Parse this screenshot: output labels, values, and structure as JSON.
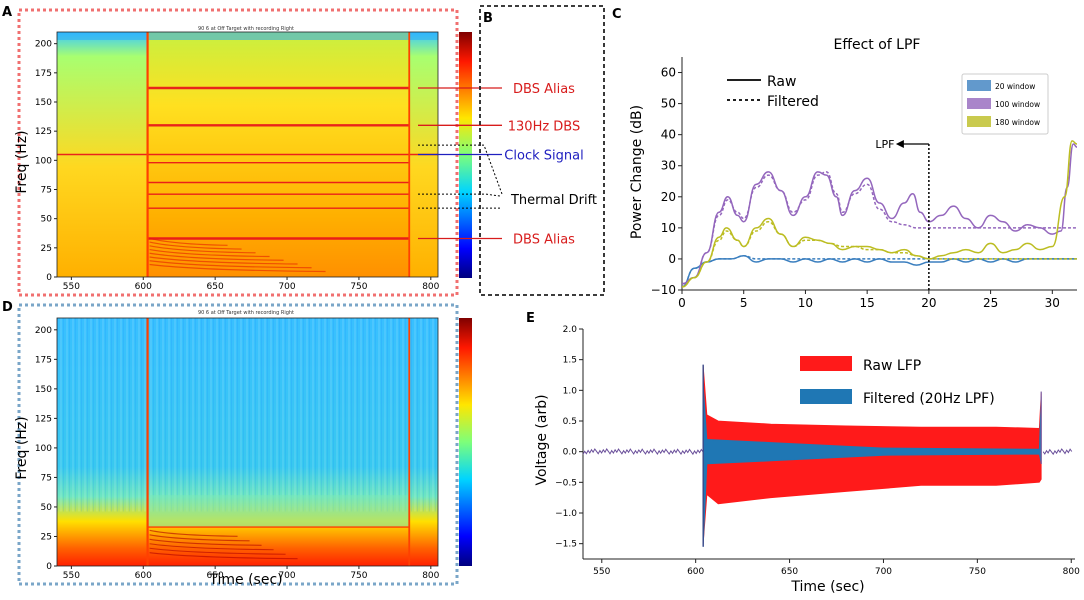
{
  "panels": {
    "A": "A",
    "B": "B",
    "C": "C",
    "D": "D",
    "E": "E"
  },
  "colors": {
    "red_dotted_border": "#f07070",
    "blue_dotted_border": "#7aa6c8",
    "annot_red": "#d81c1c",
    "annot_blue": "#2020c0",
    "raw_lfp": "#ff1a1a",
    "filtered_lfp": "#1f77b4",
    "win20": "#3b7fbf",
    "win100": "#9467bd",
    "win180": "#bcbd22"
  },
  "chart_data": [
    {
      "id": "A",
      "type": "heatmap",
      "title": "90 6 at Off Target with recording Right",
      "xlabel": "",
      "ylabel": "Freq (Hz)",
      "xlim": [
        540,
        805
      ],
      "ylim": [
        0,
        210
      ],
      "xticks": [
        "550",
        "600",
        "650",
        "700",
        "750",
        "800"
      ],
      "yticks": [
        "0",
        "25",
        "50",
        "75",
        "100",
        "125",
        "150",
        "175",
        "200"
      ],
      "stim_on": 603,
      "stim_off": 785,
      "lines_hz": [
        162,
        130,
        105,
        98,
        81,
        71,
        59,
        33
      ],
      "annotations": [
        {
          "label": "DBS Alias",
          "freq": 162,
          "color": "red"
        },
        {
          "label": "130Hz DBS",
          "freq": 130,
          "color": "red"
        },
        {
          "label": "Clock Signal",
          "freq": 105,
          "color": "blue"
        },
        {
          "label": "Thermal Drift",
          "freq": 58,
          "color": "black"
        },
        {
          "label": "DBS Alias",
          "freq": 33,
          "color": "red"
        }
      ]
    },
    {
      "id": "C",
      "type": "line",
      "title": "Effect of LPF",
      "xlabel": "",
      "ylabel": "Power Change (dB)",
      "xlim": [
        0,
        32
      ],
      "ylim": [
        -10,
        65
      ],
      "xticks": [
        "0",
        "5",
        "10",
        "15",
        "20",
        "25",
        "30"
      ],
      "yticks": [
        "−10",
        "0",
        "10",
        "20",
        "30",
        "40",
        "50",
        "60"
      ],
      "style_legend": [
        "Raw",
        "Filtered"
      ],
      "window_legend": [
        "20 window",
        "100 window",
        "180 window"
      ],
      "lpf_label": "LPF",
      "lpf_x": 20,
      "series": [
        {
          "name": "20 window",
          "raw": [
            [
              0,
              -9
            ],
            [
              1,
              -3
            ],
            [
              2,
              -1
            ],
            [
              3,
              0
            ],
            [
              4,
              0
            ],
            [
              5,
              1
            ],
            [
              6,
              -1
            ],
            [
              7,
              0
            ],
            [
              8,
              0
            ],
            [
              9,
              -1
            ],
            [
              10,
              0
            ],
            [
              11,
              -1
            ],
            [
              12,
              0
            ],
            [
              13,
              -1
            ],
            [
              14,
              0
            ],
            [
              15,
              -1
            ],
            [
              16,
              0
            ],
            [
              17,
              -1
            ],
            [
              18,
              -1
            ],
            [
              19,
              -2
            ],
            [
              20,
              -1
            ],
            [
              21,
              -1
            ],
            [
              22,
              0
            ],
            [
              23,
              -1
            ],
            [
              24,
              0
            ],
            [
              25,
              -1
            ],
            [
              26,
              0
            ],
            [
              27,
              -1
            ],
            [
              28,
              0
            ],
            [
              29,
              0
            ],
            [
              30,
              0
            ],
            [
              31,
              0
            ],
            [
              32,
              0
            ]
          ],
          "filtered": [
            [
              0,
              -9
            ],
            [
              1,
              -3
            ],
            [
              2,
              -1
            ],
            [
              3,
              0
            ],
            [
              4,
              0
            ],
            [
              5,
              1
            ],
            [
              6,
              0
            ],
            [
              7,
              0
            ],
            [
              8,
              0
            ],
            [
              9,
              0
            ],
            [
              10,
              0
            ],
            [
              11,
              0
            ],
            [
              12,
              0
            ],
            [
              13,
              0
            ],
            [
              14,
              0
            ],
            [
              15,
              0
            ],
            [
              16,
              0
            ],
            [
              17,
              0
            ],
            [
              18,
              0
            ],
            [
              19,
              0
            ],
            [
              20,
              0
            ],
            [
              21,
              0
            ],
            [
              22,
              0
            ],
            [
              23,
              0
            ],
            [
              24,
              0
            ],
            [
              25,
              0
            ],
            [
              26,
              0
            ],
            [
              27,
              0
            ],
            [
              28,
              0
            ],
            [
              29,
              0
            ],
            [
              30,
              0
            ],
            [
              31,
              0
            ],
            [
              32,
              0
            ]
          ]
        },
        {
          "name": "100 window",
          "raw": [
            [
              0,
              -8
            ],
            [
              1,
              -6
            ],
            [
              2,
              2
            ],
            [
              3,
              15
            ],
            [
              3.7,
              20
            ],
            [
              4.5,
              14
            ],
            [
              5,
              12
            ],
            [
              6,
              24
            ],
            [
              7,
              28
            ],
            [
              8,
              22
            ],
            [
              9,
              14
            ],
            [
              10,
              20
            ],
            [
              11,
              28
            ],
            [
              11.7,
              27
            ],
            [
              12.5,
              20
            ],
            [
              13,
              14
            ],
            [
              14,
              22
            ],
            [
              15,
              26
            ],
            [
              16,
              18
            ],
            [
              17,
              13
            ],
            [
              18,
              18
            ],
            [
              18.7,
              21
            ],
            [
              19.3,
              15
            ],
            [
              20,
              12
            ],
            [
              21,
              14
            ],
            [
              22,
              17
            ],
            [
              23,
              13
            ],
            [
              24,
              10
            ],
            [
              25,
              14
            ],
            [
              26,
              12
            ],
            [
              27,
              9
            ],
            [
              28,
              11
            ],
            [
              29,
              10
            ],
            [
              30,
              8
            ],
            [
              30.7,
              9
            ],
            [
              31.2,
              23
            ],
            [
              31.7,
              37
            ],
            [
              32,
              36
            ]
          ],
          "filtered": [
            [
              0,
              -8
            ],
            [
              1,
              -6
            ],
            [
              2,
              2
            ],
            [
              3,
              14
            ],
            [
              3.7,
              19
            ],
            [
              4.5,
              15
            ],
            [
              5,
              13
            ],
            [
              6,
              23
            ],
            [
              7,
              27
            ],
            [
              8,
              22
            ],
            [
              9,
              15
            ],
            [
              10,
              19
            ],
            [
              11,
              27
            ],
            [
              11.7,
              28
            ],
            [
              12.5,
              21
            ],
            [
              13,
              15
            ],
            [
              14,
              21
            ],
            [
              15,
              24
            ],
            [
              16,
              16
            ],
            [
              17,
              12
            ],
            [
              18,
              11
            ],
            [
              19,
              10
            ],
            [
              20,
              10
            ],
            [
              21,
              10
            ],
            [
              22,
              10
            ],
            [
              23,
              10
            ],
            [
              24,
              10
            ],
            [
              25,
              10
            ],
            [
              26,
              10
            ],
            [
              27,
              10
            ],
            [
              28,
              10
            ],
            [
              29,
              10
            ],
            [
              30,
              10
            ],
            [
              31,
              10
            ],
            [
              32,
              10
            ]
          ]
        },
        {
          "name": "180 window",
          "raw": [
            [
              0,
              -9
            ],
            [
              1,
              -6
            ],
            [
              2,
              -1
            ],
            [
              3,
              7
            ],
            [
              3.6,
              10
            ],
            [
              4.5,
              6
            ],
            [
              5,
              4
            ],
            [
              6,
              10
            ],
            [
              7,
              13
            ],
            [
              8,
              8
            ],
            [
              9,
              4
            ],
            [
              10,
              7
            ],
            [
              11,
              6
            ],
            [
              12,
              5
            ],
            [
              13,
              3
            ],
            [
              14,
              4
            ],
            [
              15,
              4
            ],
            [
              16,
              3
            ],
            [
              17,
              2
            ],
            [
              18,
              3
            ],
            [
              19,
              1
            ],
            [
              20,
              0
            ],
            [
              21,
              1
            ],
            [
              22,
              2
            ],
            [
              23,
              3
            ],
            [
              24,
              2
            ],
            [
              25,
              5
            ],
            [
              26,
              2
            ],
            [
              27,
              3
            ],
            [
              28,
              5
            ],
            [
              29,
              3
            ],
            [
              30,
              4
            ],
            [
              31,
              20
            ],
            [
              31.6,
              38
            ],
            [
              32,
              37
            ]
          ],
          "filtered": [
            [
              0,
              -9
            ],
            [
              1,
              -6
            ],
            [
              2,
              -1
            ],
            [
              3,
              6
            ],
            [
              3.6,
              9
            ],
            [
              4.5,
              6
            ],
            [
              5,
              4
            ],
            [
              6,
              9
            ],
            [
              7,
              12
            ],
            [
              8,
              8
            ],
            [
              9,
              4
            ],
            [
              10,
              6
            ],
            [
              11,
              6
            ],
            [
              12,
              5
            ],
            [
              13,
              4
            ],
            [
              14,
              4
            ],
            [
              15,
              3
            ],
            [
              16,
              3
            ],
            [
              17,
              2
            ],
            [
              18,
              2
            ],
            [
              19,
              1
            ],
            [
              20,
              0
            ],
            [
              21,
              0
            ],
            [
              22,
              0
            ],
            [
              23,
              0
            ],
            [
              24,
              0
            ],
            [
              25,
              0
            ],
            [
              26,
              0
            ],
            [
              27,
              0
            ],
            [
              28,
              0
            ],
            [
              29,
              0
            ],
            [
              30,
              0
            ],
            [
              31,
              0
            ],
            [
              32,
              0
            ]
          ]
        }
      ]
    },
    {
      "id": "D",
      "type": "heatmap",
      "title": "90 6 at Off Target with recording Right",
      "xlabel": "Time (sec)",
      "ylabel": "Freq (Hz)",
      "xlim": [
        540,
        805
      ],
      "ylim": [
        0,
        210
      ],
      "xticks": [
        "550",
        "600",
        "650",
        "700",
        "750",
        "800"
      ],
      "yticks": [
        "0",
        "25",
        "50",
        "75",
        "100",
        "125",
        "150",
        "175",
        "200"
      ],
      "stim_on": 603,
      "stim_off": 785
    },
    {
      "id": "E",
      "type": "line",
      "title": "",
      "xlabel": "Time (sec)",
      "ylabel": "Voltage (arb)",
      "xlim": [
        540,
        802
      ],
      "ylim": [
        -1.75,
        2.0
      ],
      "xticks": [
        "550",
        "600",
        "650",
        "700",
        "750",
        "800"
      ],
      "yticks": [
        "−1.5",
        "−1.0",
        "−0.5",
        "0.0",
        "0.5",
        "1.0",
        "1.5",
        "2.0"
      ],
      "legend": [
        "Raw LFP",
        "Filtered (20Hz LPF)"
      ],
      "stim_on": 604,
      "stim_off": 784,
      "raw_envelope": [
        [
          604,
          1.4,
          -1.5
        ],
        [
          606,
          0.6,
          -0.7
        ],
        [
          612,
          0.5,
          -0.85
        ],
        [
          640,
          0.45,
          -0.75
        ],
        [
          680,
          0.42,
          -0.65
        ],
        [
          720,
          0.4,
          -0.55
        ],
        [
          760,
          0.4,
          -0.55
        ],
        [
          783,
          0.38,
          -0.5
        ],
        [
          784,
          0.95,
          -0.45
        ]
      ],
      "filtered_envelope": [
        [
          604,
          1.1,
          -1.55
        ],
        [
          606,
          0.2,
          -0.2
        ],
        [
          640,
          0.15,
          -0.15
        ],
        [
          700,
          0.06,
          -0.06
        ],
        [
          783,
          0.04,
          -0.04
        ],
        [
          784,
          0.9,
          -0.2
        ]
      ]
    }
  ]
}
